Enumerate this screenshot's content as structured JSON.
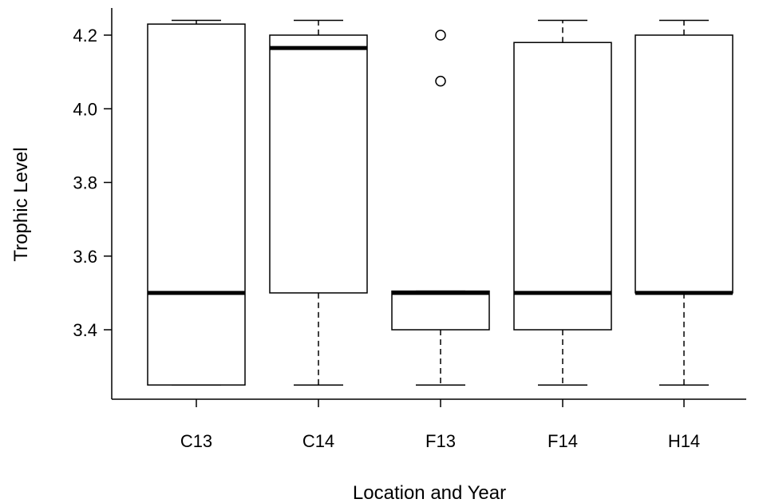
{
  "chart_data": {
    "type": "box",
    "title": "",
    "xlabel": "Location and Year",
    "ylabel": "Trophic Level",
    "ylim": [
      3.2,
      4.25
    ],
    "yticks": [
      "3.4",
      "3.6",
      "3.8",
      "4.0",
      "4.2"
    ],
    "grid": false,
    "categories": [
      "C13",
      "C14",
      "F13",
      "F14",
      "H14"
    ],
    "boxes": [
      {
        "category": "C13",
        "whisker_low": 3.25,
        "q1": 3.25,
        "median": 3.5,
        "q3": 4.23,
        "whisker_high": 4.24,
        "outliers": []
      },
      {
        "category": "C14",
        "whisker_low": 3.25,
        "q1": 3.5,
        "median": 4.165,
        "q3": 4.2,
        "whisker_high": 4.24,
        "outliers": []
      },
      {
        "category": "F13",
        "whisker_low": 3.25,
        "q1": 3.4,
        "median": 3.5,
        "q3": 3.505,
        "whisker_high": 3.505,
        "outliers": [
          4.2,
          4.075
        ]
      },
      {
        "category": "F14",
        "whisker_low": 3.25,
        "q1": 3.4,
        "median": 3.5,
        "q3": 4.18,
        "whisker_high": 4.24,
        "outliers": []
      },
      {
        "category": "H14",
        "whisker_low": 3.25,
        "q1": 3.5,
        "median": 3.5,
        "q3": 4.2,
        "whisker_high": 4.24,
        "outliers": []
      }
    ]
  }
}
